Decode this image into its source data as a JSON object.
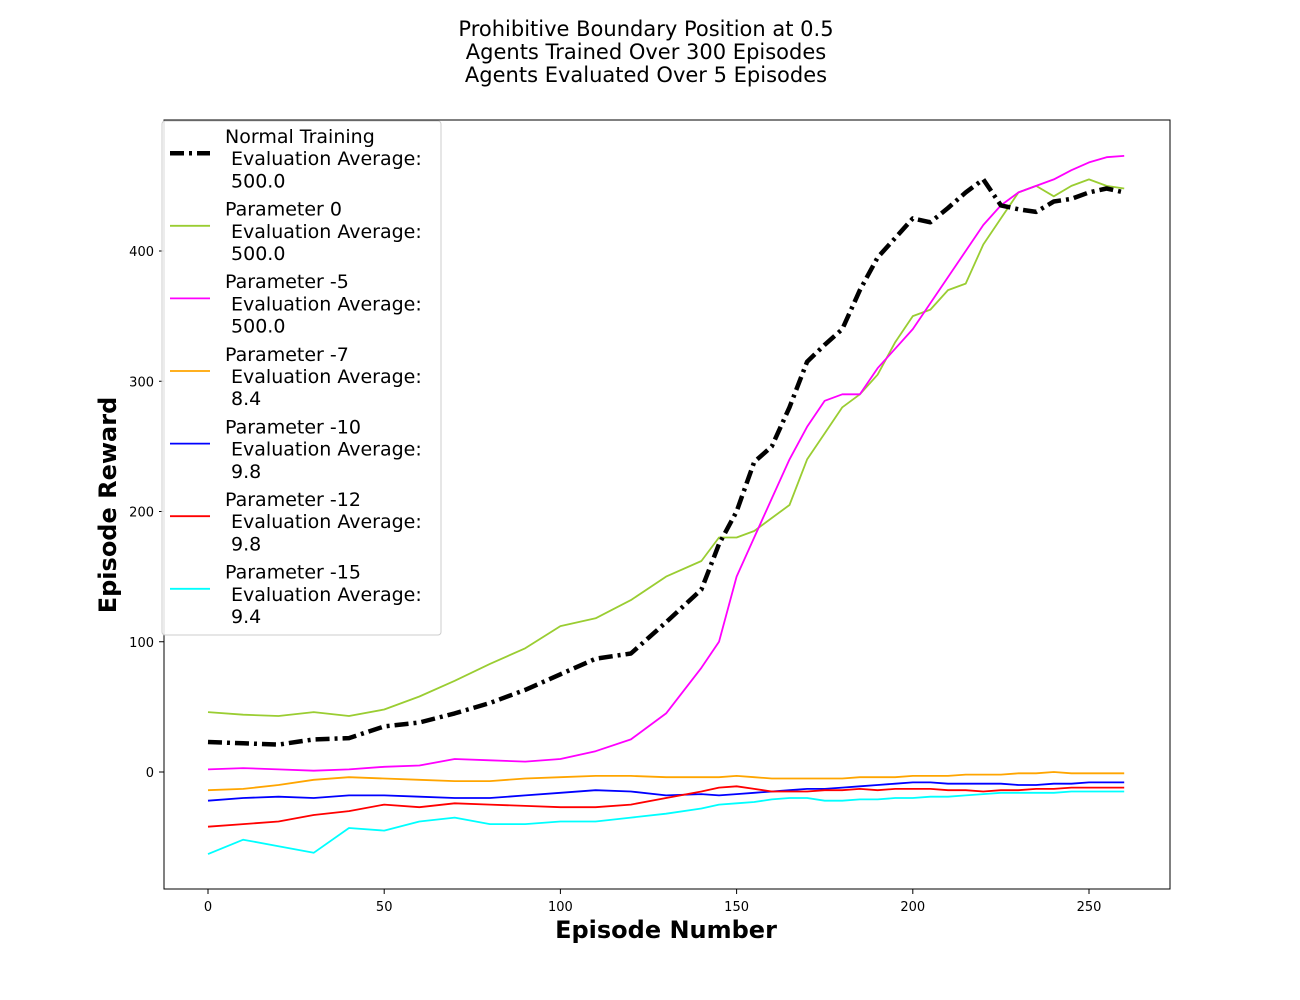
{
  "chart_data": {
    "type": "line",
    "title": [
      "Prohibitive Boundary Position at 0.5",
      "Agents Trained Over 300 Episodes",
      "Agents Evaluated Over 5 Episodes"
    ],
    "xlabel": "Episode Number",
    "ylabel": "Episode Reward",
    "xlim": [
      -12.5,
      273
    ],
    "ylim": [
      -90,
      500
    ],
    "xticks": [
      0,
      50,
      100,
      150,
      200,
      250
    ],
    "yticks": [
      0,
      100,
      200,
      300,
      400
    ],
    "grid": false,
    "legend_position": "upper-left",
    "x": [
      0,
      10,
      20,
      30,
      40,
      50,
      60,
      70,
      80,
      90,
      100,
      110,
      120,
      130,
      140,
      145,
      150,
      155,
      160,
      165,
      170,
      175,
      180,
      185,
      190,
      195,
      200,
      205,
      210,
      215,
      220,
      225,
      230,
      235,
      240,
      245,
      250,
      255,
      260
    ],
    "series": [
      {
        "name": "Normal Training",
        "legend_lines": [
          "Normal Training",
          " Evaluation Average:",
          " 500.0"
        ],
        "color": "#000000",
        "style": "dashdot",
        "values": [
          23,
          22,
          21,
          25,
          26,
          35,
          38,
          45,
          53,
          63,
          75,
          87,
          91,
          115,
          140,
          175,
          200,
          238,
          250,
          280,
          315,
          328,
          340,
          370,
          395,
          410,
          425,
          422,
          433,
          445,
          455,
          435,
          432,
          430,
          438,
          440,
          445,
          448,
          445
        ]
      },
      {
        "name": "Parameter 0",
        "legend_lines": [
          "Parameter 0",
          " Evaluation Average:",
          " 500.0"
        ],
        "color": "#9acd32",
        "style": "solid",
        "values": [
          46,
          44,
          43,
          46,
          43,
          48,
          58,
          70,
          83,
          95,
          112,
          118,
          132,
          150,
          162,
          180,
          180,
          185,
          195,
          205,
          240,
          260,
          280,
          290,
          305,
          330,
          350,
          355,
          370,
          375,
          405,
          425,
          445,
          450,
          442,
          450,
          455,
          450,
          448
        ]
      },
      {
        "name": "Parameter -5",
        "legend_lines": [
          "Parameter -5",
          " Evaluation Average:",
          " 500.0"
        ],
        "color": "#ff00ff",
        "style": "solid",
        "values": [
          2,
          3,
          2,
          1,
          2,
          4,
          5,
          10,
          9,
          8,
          10,
          16,
          25,
          45,
          80,
          100,
          150,
          180,
          210,
          240,
          265,
          285,
          290,
          290,
          310,
          325,
          340,
          360,
          380,
          400,
          420,
          435,
          445,
          450,
          455,
          462,
          468,
          472,
          473
        ]
      },
      {
        "name": "Parameter -7",
        "legend_lines": [
          "Parameter -7",
          " Evaluation Average:",
          " 8.4"
        ],
        "color": "#ffa500",
        "style": "solid",
        "values": [
          -14,
          -13,
          -10,
          -6,
          -4,
          -5,
          -6,
          -7,
          -7,
          -5,
          -4,
          -3,
          -3,
          -4,
          -4,
          -4,
          -3,
          -4,
          -5,
          -5,
          -5,
          -5,
          -5,
          -4,
          -4,
          -4,
          -3,
          -3,
          -3,
          -2,
          -2,
          -2,
          -1,
          -1,
          0,
          -1,
          -1,
          -1,
          -1
        ]
      },
      {
        "name": "Parameter -10",
        "legend_lines": [
          "Parameter -10",
          " Evaluation Average:",
          " 9.8"
        ],
        "color": "#0000ff",
        "style": "solid",
        "values": [
          -22,
          -20,
          -19,
          -20,
          -18,
          -18,
          -19,
          -20,
          -20,
          -18,
          -16,
          -14,
          -15,
          -18,
          -17,
          -18,
          -17,
          -16,
          -15,
          -14,
          -13,
          -13,
          -12,
          -11,
          -10,
          -9,
          -8,
          -8,
          -9,
          -9,
          -9,
          -9,
          -10,
          -10,
          -9,
          -9,
          -8,
          -8,
          -8
        ]
      },
      {
        "name": "Parameter -12",
        "legend_lines": [
          "Parameter -12",
          " Evaluation Average:",
          " 9.8"
        ],
        "color": "#ff0000",
        "style": "solid",
        "values": [
          -42,
          -40,
          -38,
          -33,
          -30,
          -25,
          -27,
          -24,
          -25,
          -26,
          -27,
          -27,
          -25,
          -20,
          -15,
          -12,
          -11,
          -13,
          -15,
          -15,
          -15,
          -14,
          -14,
          -13,
          -14,
          -13,
          -13,
          -13,
          -14,
          -14,
          -15,
          -14,
          -14,
          -13,
          -13,
          -12,
          -12,
          -12,
          -12
        ]
      },
      {
        "name": "Parameter -15",
        "legend_lines": [
          "Parameter -15",
          " Evaluation Average:",
          " 9.4"
        ],
        "color": "#00ffff",
        "style": "solid",
        "values": [
          -63,
          -52,
          -57,
          -62,
          -43,
          -45,
          -38,
          -35,
          -40,
          -40,
          -38,
          -38,
          -35,
          -32,
          -28,
          -25,
          -24,
          -23,
          -21,
          -20,
          -20,
          -22,
          -22,
          -21,
          -21,
          -20,
          -20,
          -19,
          -19,
          -18,
          -17,
          -16,
          -16,
          -16,
          -16,
          -15,
          -15,
          -15,
          -15
        ]
      }
    ]
  }
}
